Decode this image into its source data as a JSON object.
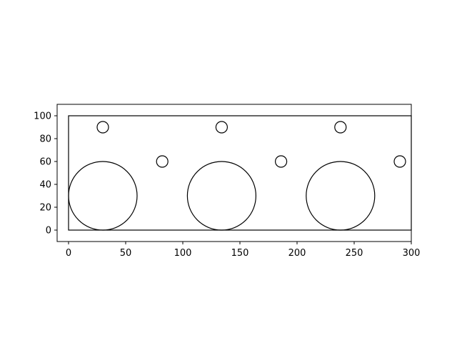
{
  "chart_data": {
    "type": "scatter",
    "title": "",
    "xlabel": "",
    "ylabel": "",
    "xlim": [
      -10,
      300
    ],
    "ylim": [
      -10,
      110
    ],
    "aspect": "equal",
    "grid": false,
    "x_ticks": [
      0,
      50,
      100,
      150,
      200,
      250,
      300
    ],
    "y_ticks": [
      0,
      20,
      40,
      60,
      80,
      100
    ],
    "x_tick_labels": [
      "0",
      "50",
      "100",
      "150",
      "200",
      "250",
      "300"
    ],
    "y_tick_labels": [
      "0",
      "20",
      "40",
      "60",
      "80",
      "100"
    ],
    "colors": {
      "stroke": "#000000",
      "background": "#ffffff"
    },
    "rectangle": {
      "x": 0,
      "y": 0,
      "width": 300,
      "height": 100
    },
    "circles": [
      {
        "cx": 30,
        "cy": 30,
        "r": 30
      },
      {
        "cx": 134,
        "cy": 30,
        "r": 30
      },
      {
        "cx": 238,
        "cy": 30,
        "r": 30
      },
      {
        "cx": 30,
        "cy": 90,
        "r": 5
      },
      {
        "cx": 134,
        "cy": 90,
        "r": 5
      },
      {
        "cx": 238,
        "cy": 90,
        "r": 5
      },
      {
        "cx": 82,
        "cy": 60,
        "r": 5
      },
      {
        "cx": 186,
        "cy": 60,
        "r": 5
      },
      {
        "cx": 290,
        "cy": 60,
        "r": 5
      }
    ]
  }
}
